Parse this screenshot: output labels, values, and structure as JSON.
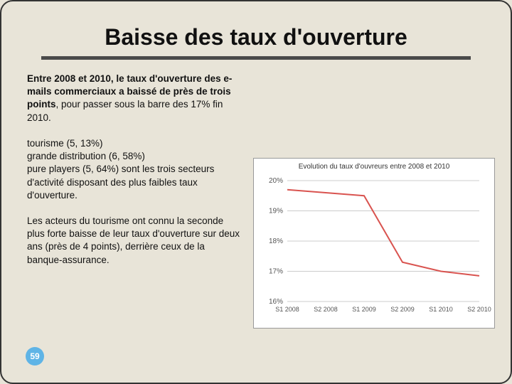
{
  "title": "Baisse des taux d'ouverture",
  "para1_bold_a": "Entre 2008 et 2010,",
  "para1_bold_b": " le taux d'ouverture des e-mails commerciaux a baissé de près de trois points",
  "para1_rest": ", pour passer sous la barre des 17% fin 2010.",
  "para2": "tourisme (5, 13%)\ngrande distribution (6, 58%)\npure players (5, 64%) sont les trois secteurs d'activité disposant des plus faibles taux d'ouverture.",
  "para3": "Les acteurs du tourisme ont connu la seconde plus forte baisse de leur taux d'ouverture sur deux ans (près de 4 points), derrière ceux de la banque-assurance.",
  "page_number": "59",
  "chart": {
    "title": "Evolution du taux d'ouvreurs entre 2008 et 2010",
    "ylim": [
      16,
      20
    ],
    "yticks": [
      "20%",
      "19%",
      "18%",
      "17%",
      "16%"
    ],
    "xlabels": [
      "S1 2008",
      "S2 2008",
      "S1 2009",
      "S2 2009",
      "S1 2010",
      "S2 2010"
    ],
    "values": [
      19.7,
      19.6,
      19.5,
      17.3,
      17.0,
      16.85
    ],
    "line_color": "#d9534f",
    "line_width": 2,
    "grid_color": "#cccccc",
    "background_color": "#ffffff"
  }
}
